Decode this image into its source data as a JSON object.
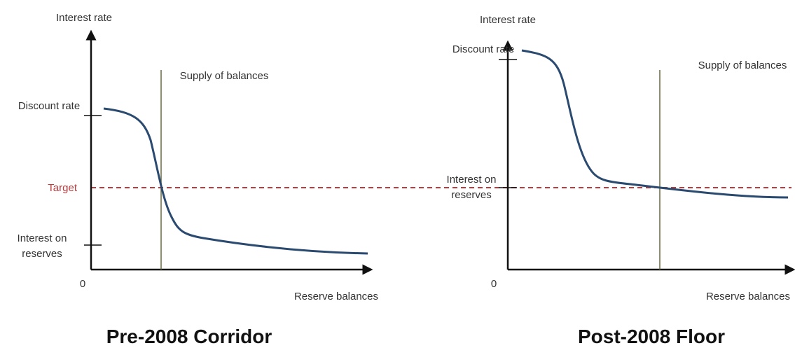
{
  "panels": [
    {
      "title": "Pre-2008 Corridor",
      "y_axis_label": "Interest rate",
      "x_axis_label": "Reserve balances",
      "origin_label": "0",
      "supply_label": "Supply of balances",
      "discount_label": "Discount rate",
      "target_label": "Target",
      "interest_label": "Interest on reserves"
    },
    {
      "title": "Post-2008 Floor",
      "y_axis_label": "Interest rate",
      "x_axis_label": "Reserve balances",
      "origin_label": "0",
      "supply_label": "Supply of balances",
      "discount_label": "Discount rate",
      "interest_label": "Interest on reserves"
    }
  ]
}
